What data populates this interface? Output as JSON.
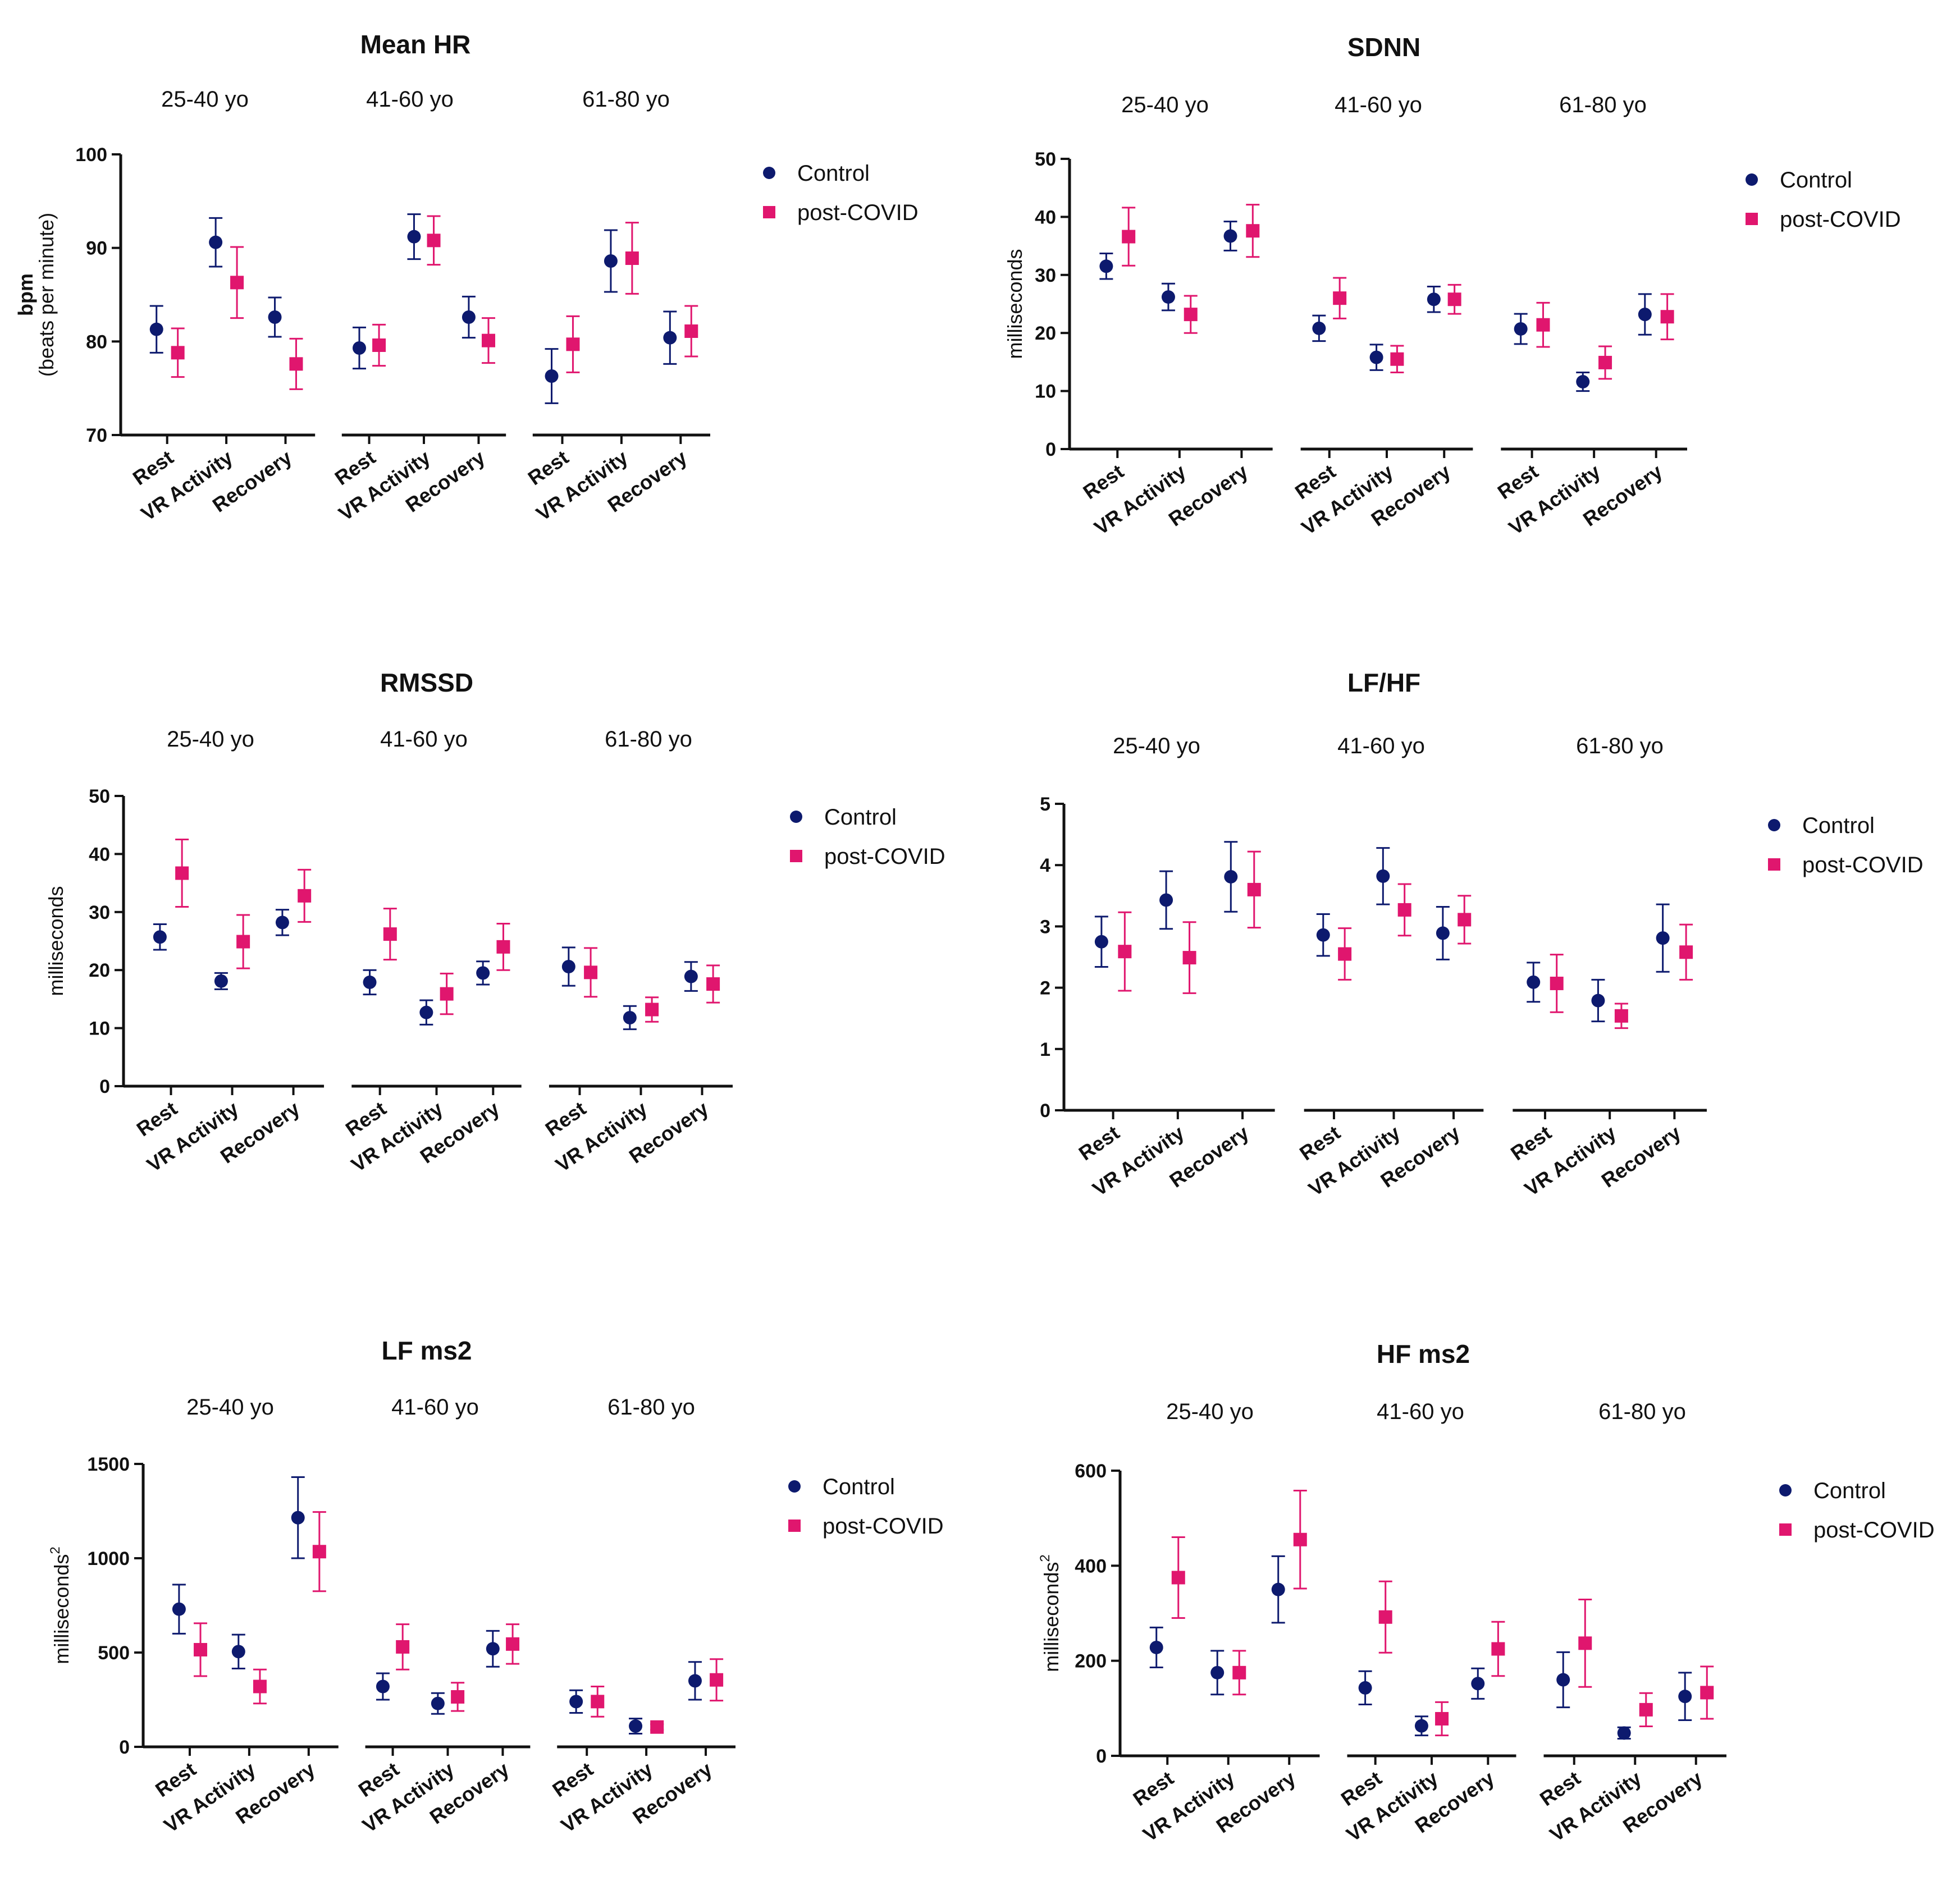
{
  "legend": [
    {
      "label": "Control",
      "color": "#0d1a6e",
      "marker": "circle"
    },
    {
      "label": "post-COVID",
      "color": "#e0166e",
      "marker": "square"
    }
  ],
  "group_labels": [
    "25-40 yo",
    "41-60 yo",
    "61-80 yo"
  ],
  "condition_labels": [
    "Rest",
    "VR Activity",
    "Recovery"
  ],
  "chart_data": [
    {
      "type": "scatter",
      "title": "Mean HR",
      "ylabel": "bpm",
      "ylabel_sub": "(beats per minute)",
      "ylabel_superscript": "",
      "ylim": [
        70,
        100
      ],
      "yticks": [
        70,
        80,
        90,
        100
      ],
      "groups": [
        "25-40 yo",
        "41-60 yo",
        "61-80 yo"
      ],
      "conditions": [
        "Rest",
        "VR Activity",
        "Recovery"
      ],
      "series": [
        {
          "name": "Control",
          "mean": [
            [
              81.3,
              90.6,
              82.6
            ],
            [
              79.3,
              91.2,
              82.6
            ],
            [
              76.3,
              88.6,
              80.4
            ]
          ],
          "err": [
            [
              2.5,
              2.6,
              2.1
            ],
            [
              2.2,
              2.4,
              2.2
            ],
            [
              2.9,
              3.3,
              2.8
            ]
          ]
        },
        {
          "name": "post-COVID",
          "mean": [
            [
              78.8,
              86.3,
              77.6
            ],
            [
              79.6,
              90.8,
              80.1
            ],
            [
              79.7,
              88.9,
              81.1
            ]
          ],
          "err": [
            [
              2.6,
              3.8,
              2.7
            ],
            [
              2.2,
              2.6,
              2.4
            ],
            [
              3.0,
              3.8,
              2.7
            ]
          ]
        }
      ]
    },
    {
      "type": "scatter",
      "title": "SDNN",
      "ylabel": "milliseconds",
      "ylabel_sub": "",
      "ylabel_superscript": "",
      "ylim": [
        0,
        50
      ],
      "yticks": [
        0,
        10,
        20,
        30,
        40,
        50
      ],
      "groups": [
        "25-40 yo",
        "41-60 yo",
        "61-80 yo"
      ],
      "conditions": [
        "Rest",
        "VR Activity",
        "Recovery"
      ],
      "series": [
        {
          "name": "Control",
          "mean": [
            [
              31.5,
              26.2,
              36.7
            ],
            [
              20.8,
              15.8,
              25.8
            ],
            [
              20.7,
              11.6,
              23.2
            ]
          ],
          "err": [
            [
              2.2,
              2.3,
              2.5
            ],
            [
              2.2,
              2.2,
              2.2
            ],
            [
              2.6,
              1.6,
              3.5
            ]
          ]
        },
        {
          "name": "post-COVID",
          "mean": [
            [
              36.6,
              23.2,
              37.6
            ],
            [
              26.0,
              15.5,
              25.8
            ],
            [
              21.4,
              14.9,
              22.8
            ]
          ],
          "err": [
            [
              5.0,
              3.2,
              4.5
            ],
            [
              3.5,
              2.3,
              2.5
            ],
            [
              3.8,
              2.8,
              3.9
            ]
          ]
        }
      ]
    },
    {
      "type": "scatter",
      "title": "RMSSD",
      "ylabel": "milliseconds",
      "ylabel_sub": "",
      "ylabel_superscript": "",
      "ylim": [
        0,
        50
      ],
      "yticks": [
        0,
        10,
        20,
        30,
        40,
        50
      ],
      "groups": [
        "25-40 yo",
        "41-60 yo",
        "61-80 yo"
      ],
      "conditions": [
        "Rest",
        "VR Activity",
        "Recovery"
      ],
      "series": [
        {
          "name": "Control",
          "mean": [
            [
              25.7,
              18.1,
              28.2
            ],
            [
              17.9,
              12.7,
              19.5
            ],
            [
              20.6,
              11.8,
              18.9
            ]
          ],
          "err": [
            [
              2.2,
              1.4,
              2.2
            ],
            [
              2.1,
              2.1,
              2.0
            ],
            [
              3.3,
              2.0,
              2.5
            ]
          ]
        },
        {
          "name": "post-COVID",
          "mean": [
            [
              36.7,
              24.9,
              32.8
            ],
            [
              26.2,
              15.9,
              24.0
            ],
            [
              19.6,
              13.2,
              17.6
            ]
          ],
          "err": [
            [
              5.8,
              4.6,
              4.5
            ],
            [
              4.4,
              3.5,
              4.0
            ],
            [
              4.2,
              2.1,
              3.2
            ]
          ]
        }
      ]
    },
    {
      "type": "scatter",
      "title": "LF/HF",
      "ylabel": "",
      "ylabel_sub": "",
      "ylabel_superscript": "",
      "ylim": [
        0,
        5
      ],
      "yticks": [
        0,
        1,
        2,
        3,
        4,
        5
      ],
      "groups": [
        "25-40 yo",
        "41-60 yo",
        "61-80 yo"
      ],
      "conditions": [
        "Rest",
        "VR Activity",
        "Recovery"
      ],
      "series": [
        {
          "name": "Control",
          "mean": [
            [
              2.75,
              3.43,
              3.81
            ],
            [
              2.86,
              3.82,
              2.89
            ],
            [
              2.09,
              1.79,
              2.81
            ]
          ],
          "err": [
            [
              0.41,
              0.47,
              0.57
            ],
            [
              0.34,
              0.46,
              0.43
            ],
            [
              0.32,
              0.34,
              0.55
            ]
          ]
        },
        {
          "name": "post-COVID",
          "mean": [
            [
              2.59,
              2.49,
              3.6
            ],
            [
              2.55,
              3.27,
              3.11
            ],
            [
              2.07,
              1.54,
              2.58
            ]
          ],
          "err": [
            [
              0.64,
              0.58,
              0.62
            ],
            [
              0.42,
              0.42,
              0.39
            ],
            [
              0.47,
              0.2,
              0.45
            ]
          ]
        }
      ]
    },
    {
      "type": "scatter",
      "title": "LF ms2",
      "ylabel": "milliseconds",
      "ylabel_sub": "",
      "ylabel_superscript": "2",
      "ylim": [
        0,
        1500
      ],
      "yticks": [
        0,
        500,
        1000,
        1500
      ],
      "groups": [
        "25-40 yo",
        "41-60 yo",
        "61-80 yo"
      ],
      "conditions": [
        "Rest",
        "VR Activity",
        "Recovery"
      ],
      "series": [
        {
          "name": "Control",
          "mean": [
            [
              730,
              505,
              1215
            ],
            [
              320,
              230,
              520
            ],
            [
              240,
              110,
              350
            ]
          ],
          "err": [
            [
              130,
              90,
              215
            ],
            [
              70,
              55,
              95
            ],
            [
              60,
              40,
              100
            ]
          ]
        },
        {
          "name": "post-COVID",
          "mean": [
            [
              515,
              320,
              1035
            ],
            [
              530,
              265,
              545
            ],
            [
              240,
              105,
              355
            ]
          ],
          "err": [
            [
              140,
              90,
              210
            ],
            [
              120,
              75,
              105
            ],
            [
              80,
              15,
              110
            ]
          ]
        }
      ]
    },
    {
      "type": "scatter",
      "title": "HF ms2",
      "ylabel": "milliseconds",
      "ylabel_sub": "",
      "ylabel_superscript": "2",
      "ylim": [
        0,
        600
      ],
      "yticks": [
        0,
        200,
        400,
        600
      ],
      "groups": [
        "25-40 yo",
        "41-60 yo",
        "61-80 yo"
      ],
      "conditions": [
        "Rest",
        "VR Activity",
        "Recovery"
      ],
      "series": [
        {
          "name": "Control",
          "mean": [
            [
              228,
              175,
              350
            ],
            [
              143,
              63,
              152
            ],
            [
              160,
              48,
              125
            ]
          ],
          "err": [
            [
              42,
              46,
              70
            ],
            [
              35,
              20,
              32
            ],
            [
              58,
              12,
              50
            ]
          ]
        },
        {
          "name": "post-COVID",
          "mean": [
            [
              375,
              175,
              455
            ],
            [
              292,
              78,
              225
            ],
            [
              237,
              97,
              133
            ]
          ],
          "err": [
            [
              85,
              46,
              103
            ],
            [
              75,
              35,
              57
            ],
            [
              92,
              35,
              55
            ]
          ]
        }
      ]
    }
  ]
}
